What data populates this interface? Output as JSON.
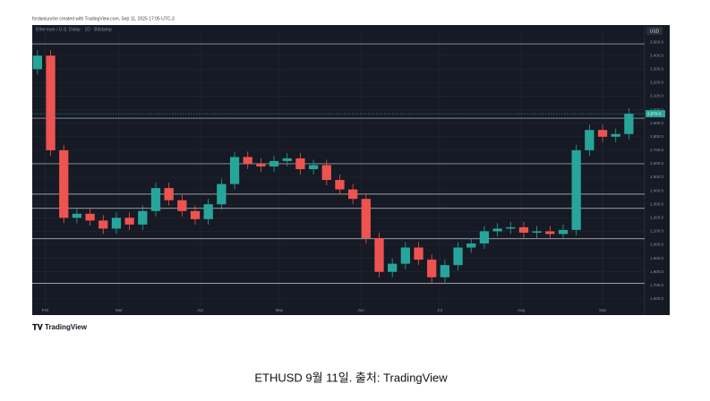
{
  "header": {
    "credit": "fordaniunche created with TradingView.com, Sep 11, 2025 17:05 UTC-3",
    "currency": "USD",
    "logo": "TradingView"
  },
  "caption": "ETHUSD 9월 11일. 출처: TradingView",
  "chart_data": {
    "type": "candlestick",
    "title": "Ethereum / U.S. Dollar · 1D · Bitstamp",
    "x": [
      -3,
      2,
      7,
      12,
      17,
      22,
      27,
      32,
      37,
      42,
      47,
      52,
      57,
      62,
      67,
      72,
      77,
      82,
      87,
      92,
      97,
      102,
      107,
      112,
      117,
      122,
      127,
      132,
      137,
      142,
      147,
      152,
      157,
      162,
      167,
      172,
      177,
      182,
      187,
      192,
      197,
      202,
      207,
      212,
      217,
      222
    ],
    "open": [
      3300,
      3400,
      2700,
      2200,
      2230,
      2180,
      2120,
      2200,
      2150,
      2250,
      2420,
      2330,
      2250,
      2190,
      2300,
      2450,
      2650,
      2600,
      2580,
      2620,
      2640,
      2560,
      2590,
      2480,
      2410,
      2340,
      2050,
      1800,
      1860,
      1980,
      1890,
      1760,
      1850,
      1980,
      2010,
      2100,
      2120,
      2130,
      2090,
      2100,
      2080,
      2110,
      2700,
      2850,
      2800,
      2820
    ],
    "high": [
      3440,
      3440,
      2740,
      2270,
      2270,
      2220,
      2240,
      2240,
      2290,
      2460,
      2460,
      2370,
      2290,
      2340,
      2490,
      2690,
      2690,
      2640,
      2660,
      2680,
      2680,
      2630,
      2630,
      2520,
      2450,
      2380,
      2090,
      1900,
      2020,
      2020,
      1930,
      1890,
      2020,
      2050,
      2140,
      2160,
      2170,
      2170,
      2140,
      2140,
      2150,
      2740,
      2890,
      2890,
      2860,
      3010
    ],
    "low": [
      3260,
      2660,
      2160,
      2160,
      2140,
      2080,
      2080,
      2110,
      2110,
      2210,
      2290,
      2210,
      2150,
      2150,
      2260,
      2410,
      2560,
      2540,
      2540,
      2580,
      2520,
      2520,
      2440,
      2370,
      2300,
      2010,
      1760,
      1760,
      1820,
      1850,
      1720,
      1720,
      1810,
      1940,
      1970,
      2060,
      2080,
      2050,
      2050,
      2040,
      2040,
      2070,
      2660,
      2760,
      2760,
      2780
    ],
    "close": [
      3400,
      2700,
      2200,
      2230,
      2180,
      2120,
      2200,
      2150,
      2250,
      2420,
      2330,
      2250,
      2190,
      2300,
      2450,
      2650,
      2600,
      2580,
      2620,
      2640,
      2560,
      2590,
      2480,
      2410,
      2340,
      2050,
      1800,
      1860,
      1980,
      1890,
      1760,
      1850,
      1980,
      2010,
      2100,
      2120,
      2130,
      2090,
      2100,
      2080,
      2110,
      2700,
      2850,
      2800,
      2820,
      2970
    ],
    "up_color": "#26a69a",
    "down_color": "#ef5350",
    "last_price_label": "2,970.0",
    "hlines": [
      3487,
      2937,
      2600,
      2375,
      2270,
      2045,
      1715
    ],
    "xlim": [
      -5,
      228
    ],
    "xticks": [
      {
        "value": 0,
        "label": "Feb"
      },
      {
        "value": 28,
        "label": "Mar"
      },
      {
        "value": 59,
        "label": "Apr"
      },
      {
        "value": 89,
        "label": "May"
      },
      {
        "value": 120,
        "label": "Jun"
      },
      {
        "value": 150,
        "label": "Jul"
      },
      {
        "value": 181,
        "label": "Aug"
      },
      {
        "value": 212,
        "label": "Sep"
      }
    ],
    "ylim": [
      1480,
      3600
    ],
    "yticks": [
      {
        "value": 1600,
        "label": "1,600.0"
      },
      {
        "value": 1700,
        "label": "1,700.0"
      },
      {
        "value": 1800,
        "label": "1,800.0"
      },
      {
        "value": 1900,
        "label": "1,900.0"
      },
      {
        "value": 2000,
        "label": "2,000.0"
      },
      {
        "value": 2100,
        "label": "2,100.0"
      },
      {
        "value": 2200,
        "label": "2,200.0"
      },
      {
        "value": 2300,
        "label": "2,300.0"
      },
      {
        "value": 2400,
        "label": "2,400.0"
      },
      {
        "value": 2500,
        "label": "2,500.0"
      },
      {
        "value": 2600,
        "label": "2,600.0"
      },
      {
        "value": 2700,
        "label": "2,700.0"
      },
      {
        "value": 2800,
        "label": "2,800.0"
      },
      {
        "value": 2900,
        "label": "2,900.0"
      },
      {
        "value": 3000,
        "label": "3,000.0"
      },
      {
        "value": 3100,
        "label": "3,100.0"
      },
      {
        "value": 3200,
        "label": "3,200.0"
      },
      {
        "value": 3300,
        "label": "3,300.0"
      },
      {
        "value": 3400,
        "label": "3,400.0"
      },
      {
        "value": 3500,
        "label": "3,500.0"
      }
    ],
    "grid": true
  }
}
